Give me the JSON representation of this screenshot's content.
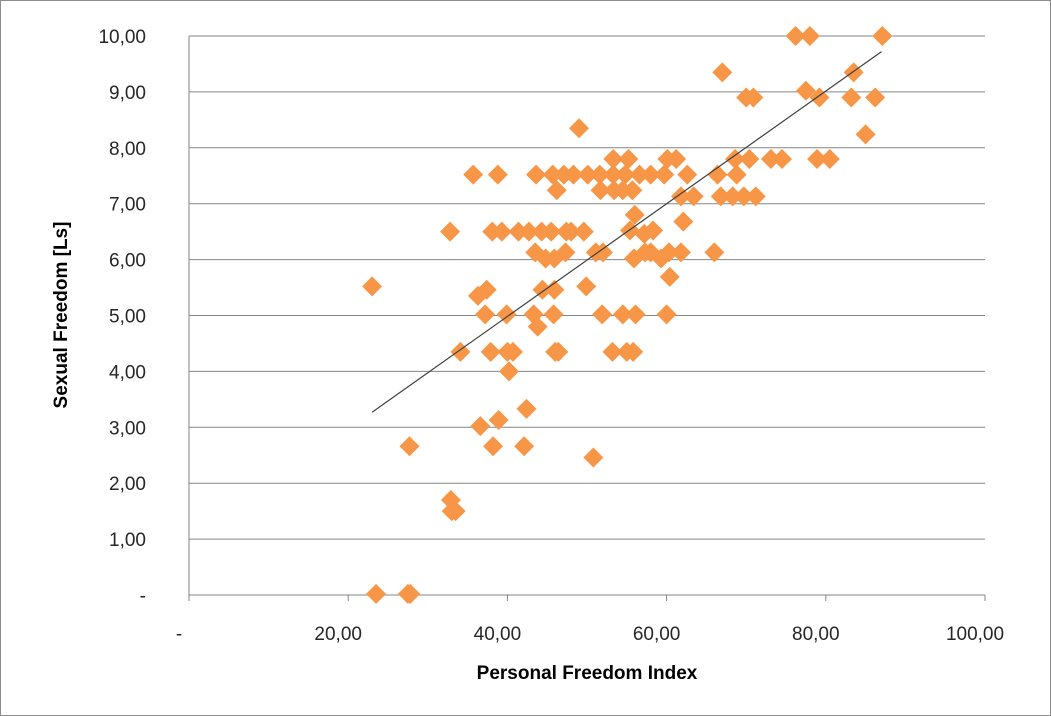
{
  "chart_data": {
    "type": "scatter",
    "xlabel": "Personal Freedom Index",
    "ylabel": "Sexual Freedom [Ls]",
    "xlim": [
      0,
      100
    ],
    "ylim": [
      0,
      10
    ],
    "x_ticks": [
      0,
      20,
      40,
      60,
      80,
      100
    ],
    "x_tick_labels": [
      "-",
      "20,00",
      "40,00",
      "60,00",
      "80,00",
      "100,00"
    ],
    "y_ticks": [
      0,
      1,
      2,
      3,
      4,
      5,
      6,
      7,
      8,
      9,
      10
    ],
    "y_tick_labels": [
      "-",
      "1,00",
      "2,00",
      "3,00",
      "4,00",
      "5,00",
      "6,00",
      "7,00",
      "8,00",
      "9,00",
      "10,00"
    ],
    "grid": "horizontal",
    "marker": "diamond",
    "marker_color": "#F79646",
    "trendline": {
      "type": "linear",
      "x": [
        23,
        87
      ],
      "y": [
        3.27,
        9.72
      ],
      "color": "#404040"
    },
    "series": [
      {
        "points": [
          [
            23.5,
            0.02
          ],
          [
            27.5,
            0.02
          ],
          [
            27.8,
            0.02
          ],
          [
            33.0,
            1.5
          ],
          [
            33.5,
            1.5
          ],
          [
            32.9,
            1.7
          ],
          [
            27.7,
            2.66
          ],
          [
            38.2,
            2.66
          ],
          [
            42.1,
            2.66
          ],
          [
            50.8,
            2.46
          ],
          [
            36.6,
            3.02
          ],
          [
            38.9,
            3.13
          ],
          [
            42.4,
            3.33
          ],
          [
            40.2,
            4.0
          ],
          [
            34.1,
            4.35
          ],
          [
            37.9,
            4.35
          ],
          [
            40.0,
            4.35
          ],
          [
            40.7,
            4.35
          ],
          [
            46.0,
            4.35
          ],
          [
            46.4,
            4.35
          ],
          [
            53.2,
            4.35
          ],
          [
            55.0,
            4.35
          ],
          [
            55.8,
            4.35
          ],
          [
            43.8,
            4.8
          ],
          [
            37.2,
            5.02
          ],
          [
            39.9,
            5.02
          ],
          [
            43.3,
            5.02
          ],
          [
            45.8,
            5.02
          ],
          [
            51.9,
            5.02
          ],
          [
            54.5,
            5.02
          ],
          [
            56.1,
            5.02
          ],
          [
            60.0,
            5.02
          ],
          [
            44.4,
            5.46
          ],
          [
            45.9,
            5.46
          ],
          [
            49.9,
            5.52
          ],
          [
            36.3,
            5.35
          ],
          [
            37.4,
            5.46
          ],
          [
            23.0,
            5.52
          ],
          [
            60.4,
            5.69
          ],
          [
            43.5,
            6.13
          ],
          [
            44.8,
            6.02
          ],
          [
            45.9,
            6.02
          ],
          [
            47.3,
            6.13
          ],
          [
            51.1,
            6.13
          ],
          [
            52.0,
            6.13
          ],
          [
            55.9,
            6.02
          ],
          [
            57.3,
            6.13
          ],
          [
            58.0,
            6.13
          ],
          [
            59.3,
            6.02
          ],
          [
            60.3,
            6.13
          ],
          [
            61.8,
            6.13
          ],
          [
            66.0,
            6.13
          ],
          [
            32.8,
            6.5
          ],
          [
            38.1,
            6.5
          ],
          [
            39.3,
            6.5
          ],
          [
            41.4,
            6.5
          ],
          [
            42.7,
            6.5
          ],
          [
            44.3,
            6.5
          ],
          [
            45.5,
            6.5
          ],
          [
            47.4,
            6.5
          ],
          [
            48.0,
            6.5
          ],
          [
            49.6,
            6.5
          ],
          [
            55.4,
            6.52
          ],
          [
            57.2,
            6.46
          ],
          [
            58.3,
            6.52
          ],
          [
            62.1,
            6.68
          ],
          [
            56.0,
            6.8
          ],
          [
            51.7,
            7.24
          ],
          [
            53.4,
            7.24
          ],
          [
            54.5,
            7.24
          ],
          [
            55.7,
            7.24
          ],
          [
            46.2,
            7.24
          ],
          [
            61.8,
            7.13
          ],
          [
            63.4,
            7.13
          ],
          [
            66.8,
            7.13
          ],
          [
            68.3,
            7.13
          ],
          [
            69.7,
            7.13
          ],
          [
            71.2,
            7.13
          ],
          [
            35.7,
            7.52
          ],
          [
            38.8,
            7.52
          ],
          [
            43.6,
            7.52
          ],
          [
            45.7,
            7.52
          ],
          [
            47.1,
            7.52
          ],
          [
            48.3,
            7.52
          ],
          [
            50.1,
            7.52
          ],
          [
            51.6,
            7.52
          ],
          [
            53.3,
            7.52
          ],
          [
            54.8,
            7.52
          ],
          [
            56.6,
            7.52
          ],
          [
            58.0,
            7.52
          ],
          [
            59.7,
            7.52
          ],
          [
            62.6,
            7.52
          ],
          [
            66.4,
            7.52
          ],
          [
            68.8,
            7.52
          ],
          [
            53.3,
            7.8
          ],
          [
            55.2,
            7.8
          ],
          [
            60.1,
            7.8
          ],
          [
            61.2,
            7.8
          ],
          [
            68.6,
            7.8
          ],
          [
            70.4,
            7.8
          ],
          [
            73.1,
            7.8
          ],
          [
            74.5,
            7.8
          ],
          [
            78.9,
            7.8
          ],
          [
            80.5,
            7.8
          ],
          [
            49.0,
            8.35
          ],
          [
            85.0,
            8.24
          ],
          [
            70.0,
            8.9
          ],
          [
            70.9,
            8.9
          ],
          [
            77.5,
            9.02
          ],
          [
            79.2,
            8.9
          ],
          [
            83.2,
            8.9
          ],
          [
            86.2,
            8.9
          ],
          [
            67.0,
            9.35
          ],
          [
            83.5,
            9.35
          ],
          [
            76.2,
            10.0
          ],
          [
            78.0,
            10.0
          ],
          [
            87.1,
            10.0
          ]
        ]
      }
    ]
  }
}
